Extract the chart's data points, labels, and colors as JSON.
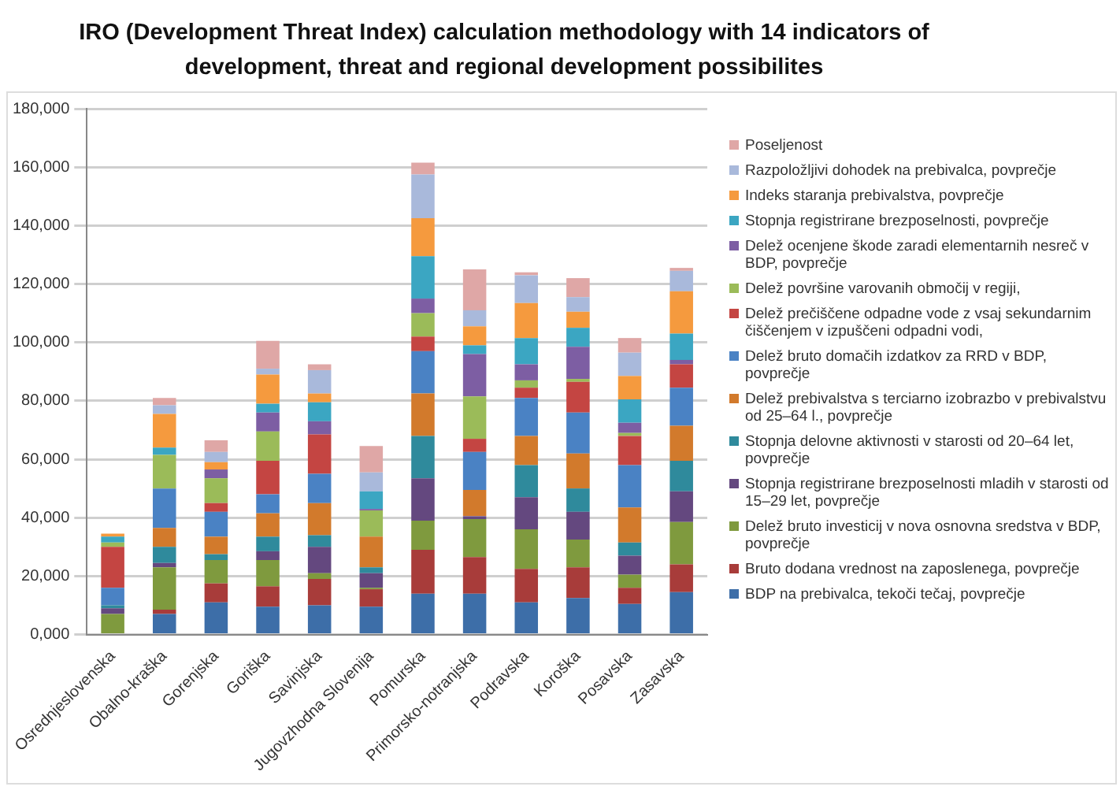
{
  "chart_data": {
    "type": "bar",
    "stacked": true,
    "title": "IRO (Development Threat Index) calculation methodology with 14 indicators of development, threat and regional development possibilites",
    "categories": [
      "Osrednjeslovenska",
      "Obalno-kraška",
      "Gorenjska",
      "Goriška",
      "Savinjska",
      "Jugovzhodna Slovenija",
      "Pomurska",
      "Primorsko-notranjska",
      "Podravska",
      "Koroška",
      "Posavska",
      "Zasavska"
    ],
    "ylim": [
      0,
      180000
    ],
    "yticks": [
      {
        "value": 0,
        "label": "0,000"
      },
      {
        "value": 20000,
        "label": "20,000"
      },
      {
        "value": 40000,
        "label": "40,000"
      },
      {
        "value": 60000,
        "label": "60,000"
      },
      {
        "value": 80000,
        "label": "80,000"
      },
      {
        "value": 100000,
        "label": "100,000"
      },
      {
        "value": 120000,
        "label": "120,000"
      },
      {
        "value": 140000,
        "label": "140,000"
      },
      {
        "value": 160000,
        "label": "160,000"
      },
      {
        "value": 180000,
        "label": "180,000"
      }
    ],
    "grid": "y",
    "legend": "right",
    "series": [
      {
        "name": "BDP na prebivalca, tekoči tečaj, povprečje",
        "color": "#3d6ea8",
        "values": [
          0,
          7000,
          11000,
          9500,
          10000,
          9500,
          14000,
          14000,
          11000,
          12500,
          10500,
          14500
        ]
      },
      {
        "name": "Bruto dodana vrednost na zaposlenega, povprečje",
        "color": "#a83c3a",
        "values": [
          0,
          1500,
          6500,
          7000,
          9000,
          6000,
          15000,
          12500,
          11500,
          10500,
          5500,
          9500
        ]
      },
      {
        "name": "Delež bruto investicij v nova osnovna sredstva v BDP, povprečje",
        "color": "#7f9a3e",
        "values": [
          7000,
          14500,
          8000,
          9000,
          2000,
          500,
          10000,
          13000,
          13500,
          9500,
          4500,
          14500
        ]
      },
      {
        "name": "Stopnja registrirane brezposelnosti mladih v starosti od 15–29 let, povprečje",
        "color": "#64487f",
        "values": [
          2000,
          1500,
          0,
          3000,
          9000,
          5000,
          14500,
          1000,
          11000,
          9500,
          6500,
          10500
        ]
      },
      {
        "name": "Stopnja delovne aktivnosti v starosti od 20–64 let, povprečje",
        "color": "#2f8a9c",
        "values": [
          1000,
          5500,
          2000,
          5000,
          4000,
          2000,
          14500,
          0,
          11000,
          8000,
          4500,
          10500
        ]
      },
      {
        "name": "Delež prebivalstva s terciarno izobrazbo v prebivalstvu od 25–64 l., povprečje",
        "color": "#d27a2c",
        "values": [
          0,
          6500,
          6000,
          8000,
          11000,
          10500,
          14500,
          9000,
          10000,
          12000,
          12000,
          12000
        ]
      },
      {
        "name": "Delež bruto domačih izdatkov za RRD v BDP, povprečje",
        "color": "#4a82c4",
        "values": [
          6000,
          13500,
          8500,
          6500,
          10000,
          0,
          14500,
          13000,
          13000,
          14000,
          14500,
          13000
        ]
      },
      {
        "name": "Delež prečiščene odpadne vode z vsaj sekundarnim čiščenjem v izpuščeni odpadni vodi,",
        "color": "#c44542",
        "values": [
          14000,
          0,
          3000,
          11500,
          13500,
          0,
          5000,
          4500,
          3500,
          10500,
          10000,
          8000
        ]
      },
      {
        "name": "Delež površine varovanih območij v regiji,",
        "color": "#9bbb59",
        "values": [
          1500,
          11500,
          8500,
          10000,
          0,
          9000,
          8000,
          14500,
          2500,
          1000,
          1000,
          0
        ]
      },
      {
        "name": "Delež ocenjene škode zaradi elementarnih nesreč v BDP, povprečje",
        "color": "#7d5ea3",
        "values": [
          0,
          0,
          3000,
          6500,
          4500,
          500,
          5000,
          14500,
          5500,
          11000,
          3500,
          1500
        ]
      },
      {
        "name": "Stopnja registrirane brezposelnosti, povprečje",
        "color": "#3ba6c2",
        "values": [
          2000,
          2500,
          0,
          3000,
          6500,
          6000,
          14500,
          3000,
          9000,
          6500,
          8000,
          9000
        ]
      },
      {
        "name": "Indeks staranja prebivalstva, povprečje",
        "color": "#f59a3e",
        "values": [
          1000,
          11500,
          2500,
          10000,
          3000,
          0,
          13000,
          6500,
          12000,
          5500,
          8000,
          14500
        ]
      },
      {
        "name": "Razpoložljivi dohodek na prebivalca, povprečje",
        "color": "#a9b9db",
        "values": [
          null,
          3000,
          3500,
          2000,
          8000,
          6500,
          15000,
          5500,
          9500,
          5000,
          8000,
          7000
        ]
      },
      {
        "name": "Poseljenost",
        "color": "#dfa7a6",
        "values": [
          0,
          2500,
          4000,
          9500,
          2000,
          9000,
          4000,
          14000,
          1000,
          6500,
          5000,
          1000
        ]
      }
    ]
  }
}
